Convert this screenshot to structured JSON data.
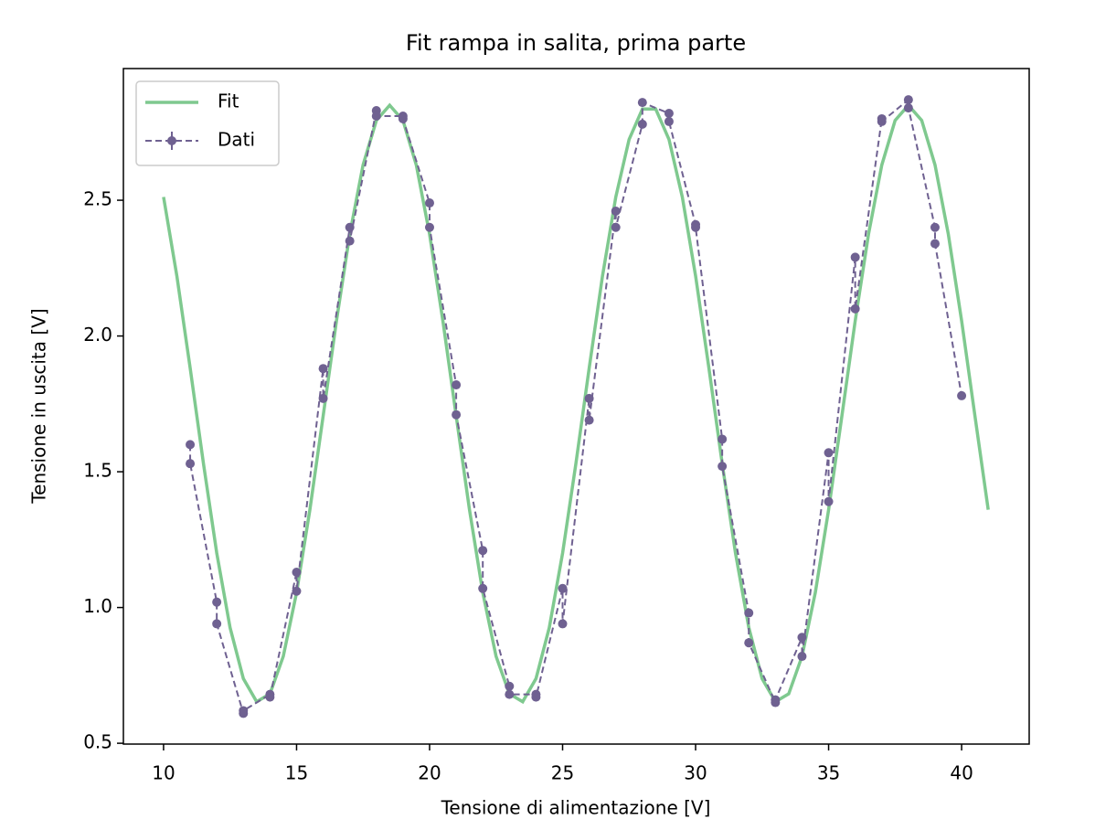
{
  "chart_data": {
    "type": "line",
    "title": "Fit rampa in salita, prima parte",
    "xlabel": "Tensione di alimentazione [V]",
    "ylabel": "Tensione in uscita [V]",
    "xlim": [
      8.49,
      42.54
    ],
    "ylim": [
      0.497,
      2.985
    ],
    "xticks": [
      10,
      15,
      20,
      25,
      30,
      35,
      40
    ],
    "yticks": [
      0.5,
      {
        "value": 1.0,
        "label": "1.0"
      },
      1.5,
      {
        "value": 2.0,
        "label": "2.0"
      },
      2.5
    ],
    "grid": false,
    "legend": "upper left",
    "series": [
      {
        "name": "Fit",
        "color": "#7fc98f",
        "style": "solid",
        "markers": false,
        "x": [
          10,
          10.5,
          11,
          11.5,
          12,
          12.5,
          13,
          13.5,
          14,
          14.5,
          15,
          15.5,
          16,
          16.5,
          17,
          17.5,
          18,
          18.5,
          19,
          19.5,
          20,
          20.5,
          21,
          21.5,
          22,
          22.5,
          23,
          23.5,
          24,
          24.5,
          25,
          25.5,
          26,
          26.5,
          27,
          27.5,
          28,
          28.5,
          29,
          29.5,
          30,
          30.5,
          31,
          31.5,
          32,
          32.5,
          33,
          33.5,
          34,
          34.5,
          35,
          35.5,
          36,
          36.5,
          37,
          37.5,
          38,
          38.5,
          39,
          39.5,
          40,
          40.5,
          41
        ],
        "values": [
          2.512,
          2.221,
          1.882,
          1.53,
          1.2,
          0.926,
          0.738,
          0.653,
          0.682,
          0.82,
          1.055,
          1.36,
          1.706,
          2.056,
          2.375,
          2.63,
          2.794,
          2.85,
          2.794,
          2.63,
          2.375,
          2.056,
          1.706,
          1.36,
          1.055,
          0.82,
          0.682,
          0.653,
          0.738,
          0.926,
          1.2,
          1.53,
          1.882,
          2.221,
          2.512,
          2.724,
          2.836,
          2.836,
          2.724,
          2.512,
          2.221,
          1.882,
          1.53,
          1.2,
          0.926,
          0.738,
          0.653,
          0.682,
          0.82,
          1.055,
          1.36,
          1.706,
          2.056,
          2.375,
          2.63,
          2.794,
          2.85,
          2.794,
          2.63,
          2.375,
          2.056,
          1.706,
          1.36
        ]
      },
      {
        "name": "Dati",
        "color": "#6f6191",
        "style": "dashed",
        "markers": true,
        "x": [
          11,
          11,
          12,
          12,
          13,
          13,
          14,
          14,
          15,
          15,
          16,
          16,
          17,
          17,
          18,
          18,
          19,
          19,
          20,
          20,
          21,
          21,
          22,
          22,
          23,
          23,
          24,
          24,
          25,
          25,
          26,
          26,
          27,
          27,
          28,
          28,
          29,
          29,
          30,
          30,
          31,
          31,
          32,
          32,
          33,
          33,
          34,
          34,
          35,
          35,
          36,
          36,
          37,
          37,
          38,
          38,
          39,
          39,
          40
        ],
        "values": [
          1.6,
          1.53,
          1.02,
          0.94,
          0.61,
          0.62,
          0.68,
          0.67,
          1.13,
          1.06,
          1.88,
          1.77,
          2.4,
          2.35,
          2.83,
          2.81,
          2.81,
          2.8,
          2.49,
          2.4,
          1.82,
          1.71,
          1.21,
          1.07,
          0.71,
          0.68,
          0.68,
          0.67,
          1.07,
          0.94,
          1.77,
          1.69,
          2.46,
          2.4,
          2.78,
          2.86,
          2.82,
          2.79,
          2.41,
          2.4,
          1.62,
          1.52,
          0.98,
          0.87,
          0.65,
          0.66,
          0.89,
          0.82,
          1.57,
          1.39,
          2.29,
          2.1,
          2.8,
          2.79,
          2.87,
          2.84,
          2.4,
          2.34,
          1.78
        ]
      }
    ]
  }
}
